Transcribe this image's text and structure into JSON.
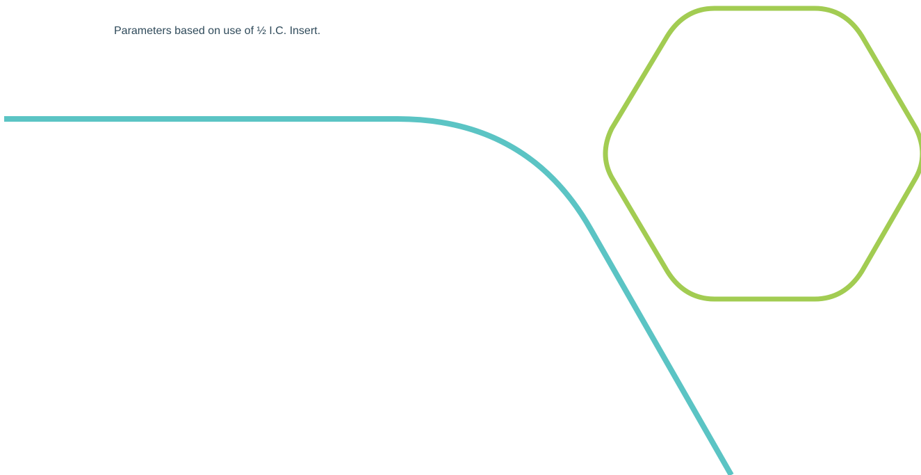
{
  "footnote": {
    "text": "Parameters based on use of ½ I.C. Insert."
  },
  "colors": {
    "text": "#2f4a5a",
    "teal_line": "#5bc4c4",
    "green_hexagon": "#a2cc52"
  },
  "decorations": {
    "line_icon": "teal-curve-line",
    "hexagon_icon": "green-hexagon-outline"
  }
}
